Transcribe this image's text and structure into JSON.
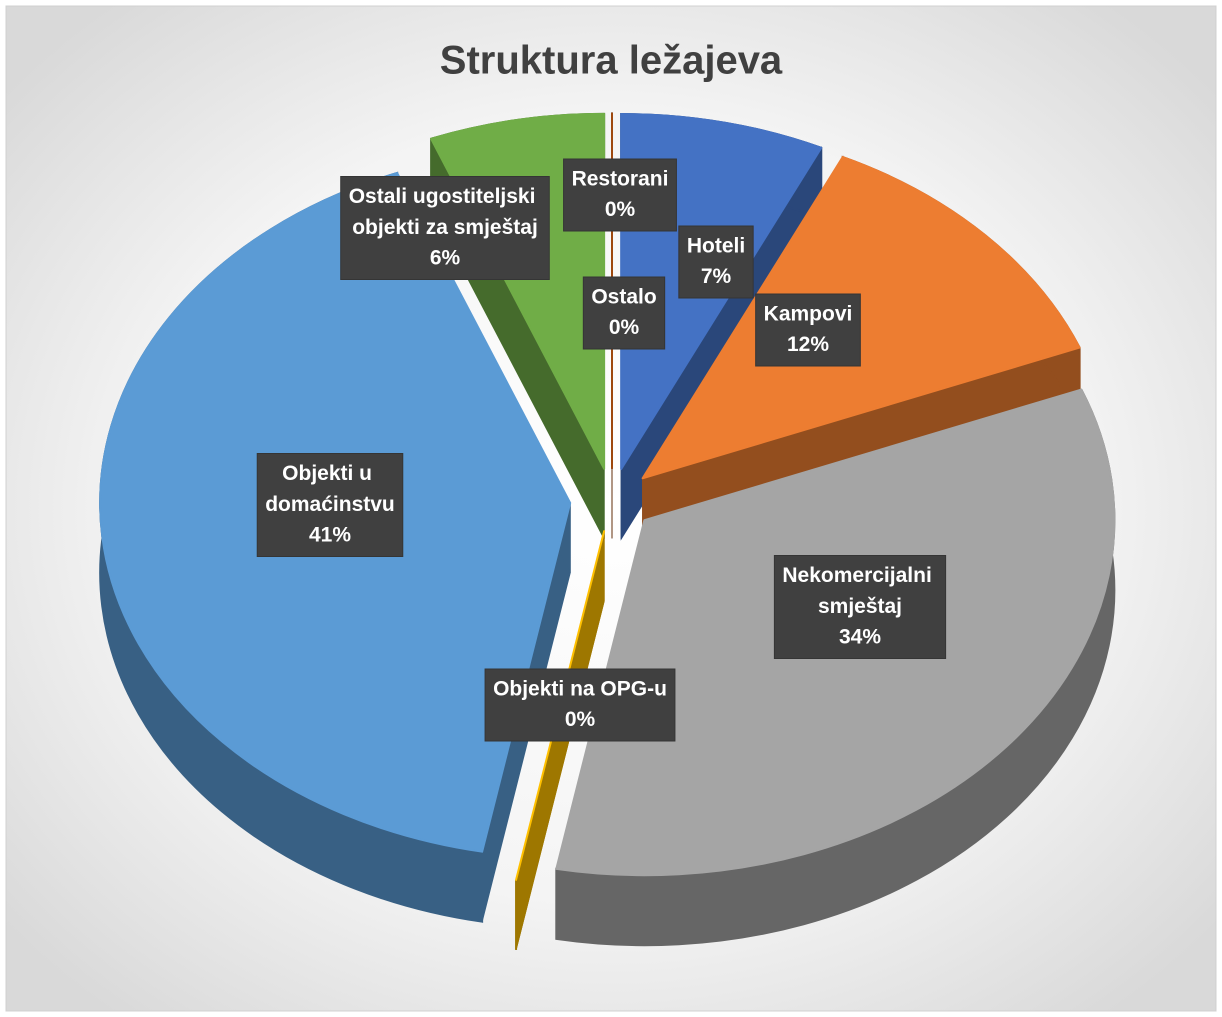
{
  "chart_data": {
    "type": "pie3d",
    "title": "Struktura ležajeva",
    "categories": [
      "Hoteli",
      "Kampovi",
      "Nekomercijalni smještaj",
      "Objekti na OPG-u",
      "Objekti u domaćinstvu",
      "Ostali ugostiteljski objekti za smještaj",
      "Ostalo",
      "Restorani"
    ],
    "values": [
      7,
      12,
      34,
      0,
      41,
      6,
      0,
      0
    ],
    "value_labels": [
      "7%",
      "12%",
      "34%",
      "0%",
      "41%",
      "6%",
      "0%",
      "0%"
    ],
    "colors": [
      "#4472c4",
      "#ed7d31",
      "#a5a5a5",
      "#ffc000",
      "#5b9bd5",
      "#70ad47",
      "#264478",
      "#9e480e"
    ]
  }
}
